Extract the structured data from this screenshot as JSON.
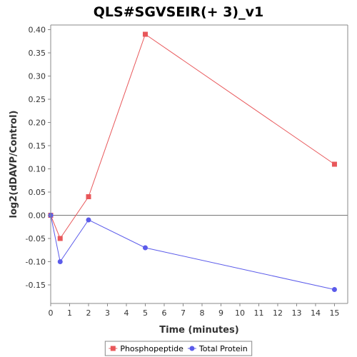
{
  "chart_data": {
    "type": "line",
    "title": "QLS#SGVSEIR(+ 3)_v1",
    "xlabel": "Time (minutes)",
    "ylabel": "log2(dDAVP/Control)",
    "xlim": [
      0,
      15.7
    ],
    "ylim": [
      -0.19,
      0.41
    ],
    "xticks": [
      0,
      1,
      2,
      3,
      4,
      5,
      6,
      7,
      8,
      9,
      10,
      11,
      12,
      13,
      14,
      15
    ],
    "xtick_labels": [
      "0",
      "1",
      "2",
      "3",
      "4",
      "5",
      "6",
      "7",
      "8",
      "9",
      "10",
      "11",
      "12",
      "13",
      "14",
      "15"
    ],
    "yticks": [
      -0.15,
      -0.1,
      -0.05,
      0.0,
      0.05,
      0.1,
      0.15,
      0.2,
      0.25,
      0.3,
      0.35,
      0.4
    ],
    "ytick_labels": [
      "-0.15",
      "-0.10",
      "-0.05",
      "0.00",
      "0.05",
      "0.10",
      "0.15",
      "0.20",
      "0.25",
      "0.30",
      "0.35",
      "0.40"
    ],
    "grid": false,
    "zero_line": true,
    "legend_position": "bottom",
    "series": [
      {
        "name": "Phosphopeptide",
        "color": "#e8575a",
        "marker": "square",
        "x": [
          0,
          0.5,
          2,
          5,
          15
        ],
        "y": [
          0.0,
          -0.05,
          0.04,
          0.39,
          0.11
        ]
      },
      {
        "name": "Total Protein",
        "color": "#5b5bea",
        "marker": "circle",
        "x": [
          0,
          0.5,
          2,
          5,
          15
        ],
        "y": [
          0.0,
          -0.1,
          -0.01,
          -0.07,
          -0.16
        ]
      }
    ]
  }
}
